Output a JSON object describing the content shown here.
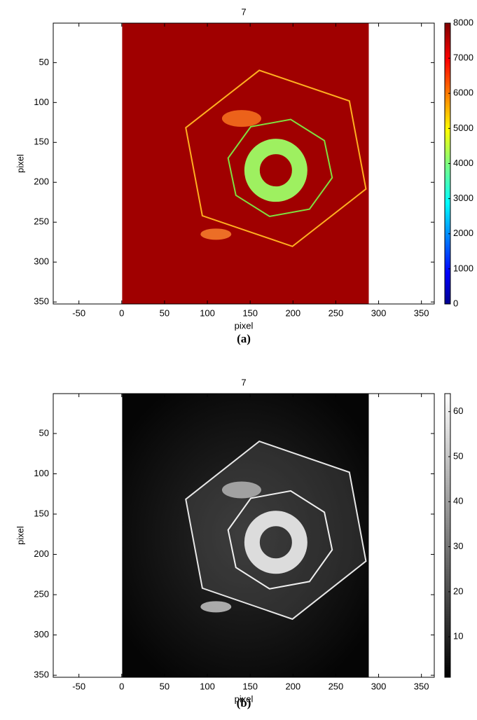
{
  "chart_data": [
    {
      "type": "image",
      "title": "7",
      "xlabel": "pixel",
      "ylabel": "pixel",
      "caption": "(a)",
      "xlim": [
        -80,
        365
      ],
      "ylim": [
        0.5,
        352.5
      ],
      "y_reversed": true,
      "xticks": [
        -50,
        0,
        50,
        100,
        150,
        200,
        250,
        300,
        350
      ],
      "yticks": [
        50,
        100,
        150,
        200,
        250,
        300,
        350
      ],
      "image_xlim": [
        0.5,
        288.5
      ],
      "colormap": "jet",
      "clim": [
        0,
        8000
      ],
      "cticks": [
        0,
        1000,
        2000,
        3000,
        4000,
        5000,
        6000,
        7000,
        8000
      ]
    },
    {
      "type": "image",
      "title": "7",
      "xlabel": "pixel",
      "ylabel": "pixel",
      "caption": "(b)",
      "xlim": [
        -80,
        365
      ],
      "ylim": [
        0.5,
        352.5
      ],
      "y_reversed": true,
      "xticks": [
        -50,
        0,
        50,
        100,
        150,
        200,
        250,
        300,
        350
      ],
      "yticks": [
        50,
        100,
        150,
        200,
        250,
        300,
        350
      ],
      "image_xlim": [
        0.5,
        288.5
      ],
      "colormap": "gray",
      "clim": [
        1,
        64
      ],
      "cticks": [
        10,
        20,
        30,
        40,
        50,
        60
      ]
    }
  ]
}
